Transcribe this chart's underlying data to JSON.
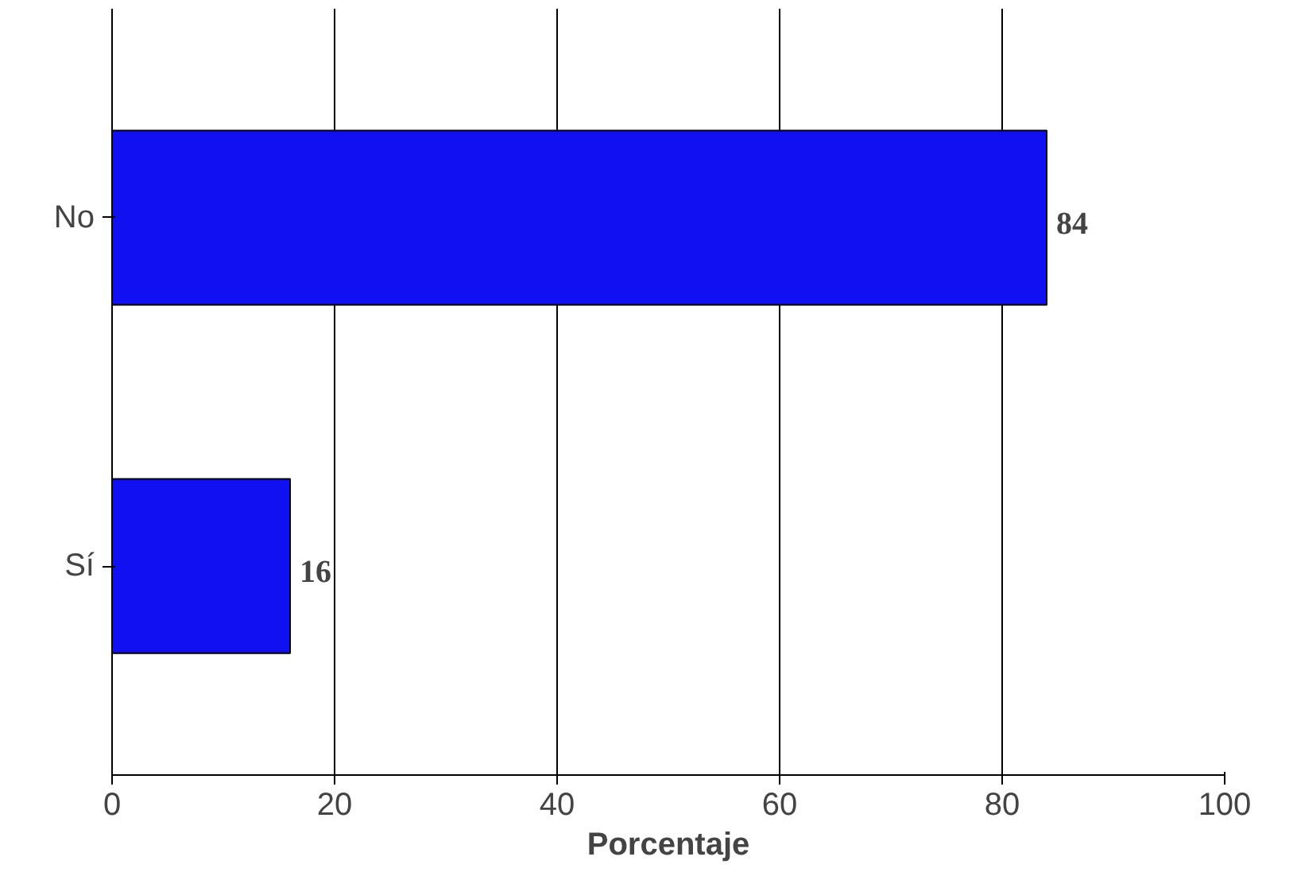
{
  "chart_data": {
    "type": "bar",
    "orientation": "horizontal",
    "xlabel": "Porcentaje",
    "categories": [
      "No",
      "Sí"
    ],
    "values": [
      84,
      16
    ],
    "color": "#1010f0",
    "data_labels": true,
    "xlim": [
      0,
      100
    ],
    "xticks": [
      0,
      20,
      40,
      60,
      80,
      100
    ],
    "grid": "x"
  }
}
